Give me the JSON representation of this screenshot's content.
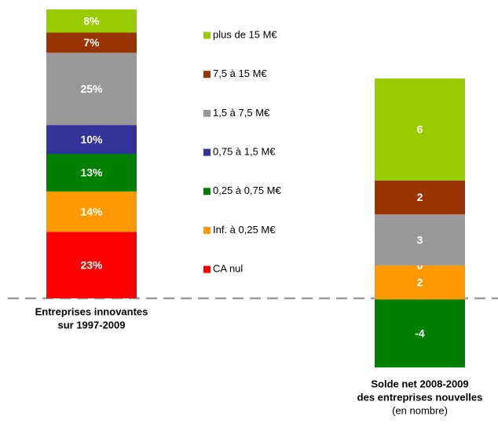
{
  "chart_data": [
    {
      "type": "stacked_bar",
      "category_label": [
        "Entreprises innovantes",
        "sur 1997-2009"
      ],
      "ylim": [
        0,
        100
      ],
      "series": [
        {
          "name": "CA nul",
          "color": "#ff0000",
          "values": [
            23
          ],
          "value_labels": [
            "23%"
          ]
        },
        {
          "name": "Inf. à 0,25 M€",
          "color": "#ff9900",
          "values": [
            14
          ],
          "value_labels": [
            "14%"
          ]
        },
        {
          "name": "0,25 à 0,75 M€",
          "color": "#008000",
          "values": [
            13
          ],
          "value_labels": [
            "13%"
          ]
        },
        {
          "name": "0,75 à 1,5 M€",
          "color": "#333399",
          "values": [
            10
          ],
          "value_labels": [
            "10%"
          ]
        },
        {
          "name": "1,5 à 7,5 M€",
          "color": "#999999",
          "values": [
            25
          ],
          "value_labels": [
            "25%"
          ]
        },
        {
          "name": "7,5 à 15 M€",
          "color": "#993300",
          "values": [
            7
          ],
          "value_labels": [
            "7%"
          ]
        },
        {
          "name": "plus de 15 M€",
          "color": "#99cc00",
          "values": [
            8
          ],
          "value_labels": [
            "8%"
          ]
        }
      ]
    },
    {
      "type": "stacked_bar",
      "category_label": [
        "Solde net 2008-2009",
        "des entreprises nouvelles"
      ],
      "subtitle": "(en nombre)",
      "ylim": [
        -4,
        13
      ],
      "series": [
        {
          "values": [
            0
          ]
        },
        {
          "values": [
            2
          ]
        },
        {
          "values": [
            -4
          ]
        },
        {
          "values": [
            0
          ]
        },
        {
          "values": [
            3
          ]
        },
        {
          "values": [
            2
          ]
        },
        {
          "values": [
            6
          ]
        }
      ]
    }
  ]
}
